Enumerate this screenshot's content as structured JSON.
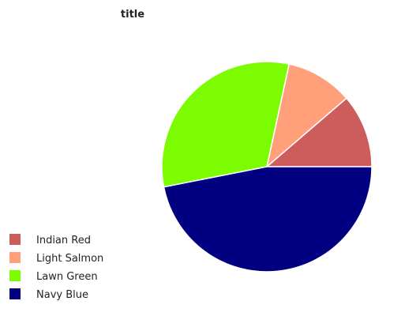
{
  "chart_data": {
    "type": "pie",
    "title": "title",
    "labels": [
      "Indian Red",
      "Light Salmon",
      "Lawn Green",
      "Navy Blue"
    ],
    "values": [
      11.3,
      10.3,
      31.5,
      46.9
    ],
    "colors": [
      "#cd5c5c",
      "#ffa07a",
      "#7cfc00",
      "#000080"
    ],
    "legend_position": "bottom-left"
  }
}
